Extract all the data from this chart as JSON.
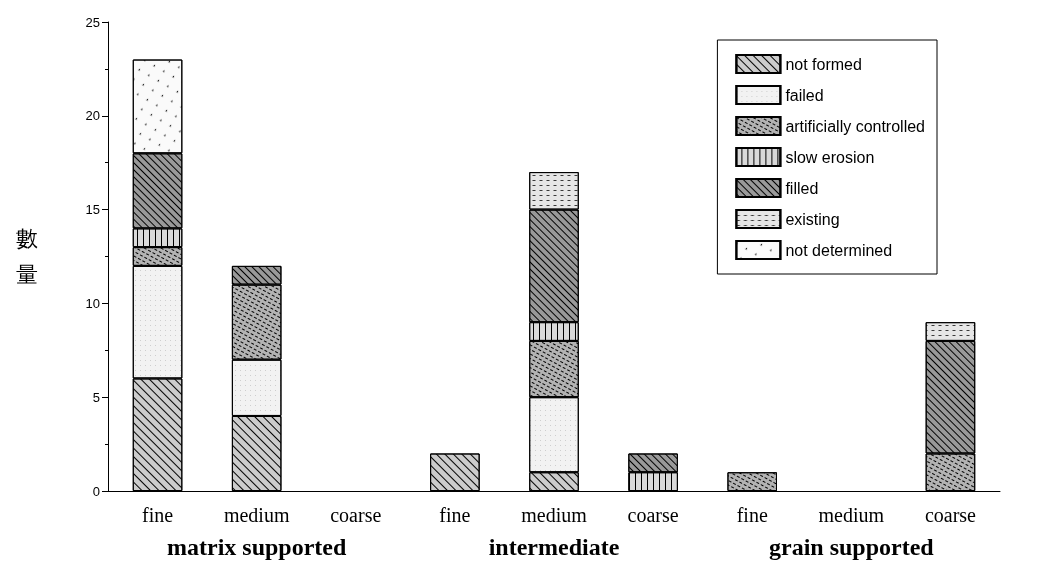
{
  "chart_data": {
    "type": "bar",
    "stacked": true,
    "ylabel": "數量",
    "categories": [
      "fine",
      "medium",
      "coarse",
      "fine",
      "medium",
      "coarse",
      "fine",
      "medium",
      "coarse"
    ],
    "annotations": [
      "matrix supported",
      "intermediate",
      "grain supported"
    ],
    "series": [
      {
        "name": "not formed",
        "color": "#cccccc",
        "values": [
          6,
          4,
          null,
          2,
          1,
          null,
          null,
          null,
          null
        ]
      },
      {
        "name": "failed",
        "color": "#f2f2f2",
        "values": [
          6,
          3,
          null,
          null,
          4,
          null,
          null,
          null,
          null
        ]
      },
      {
        "name": "artificially controlled",
        "color": "#b3b3b3",
        "values": [
          1,
          4,
          null,
          null,
          3,
          null,
          1,
          null,
          2
        ]
      },
      {
        "name": "slow erosion",
        "color": "#d9d9d9",
        "values": [
          1,
          null,
          null,
          null,
          1,
          1,
          null,
          null,
          null
        ]
      },
      {
        "name": "filled",
        "color": "#999999",
        "values": [
          4,
          1,
          null,
          null,
          6,
          1,
          null,
          null,
          6
        ]
      },
      {
        "name": "existing",
        "color": "#e6e6e6",
        "values": [
          null,
          null,
          null,
          null,
          2,
          null,
          null,
          null,
          1
        ]
      },
      {
        "name": "not determined",
        "color": "#fafafa",
        "values": [
          5,
          null,
          null,
          null,
          null,
          null,
          null,
          null,
          null
        ]
      }
    ],
    "ylim": [
      0,
      25
    ],
    "yticks": [
      0,
      5,
      10,
      15,
      20,
      25
    ],
    "grid": false,
    "legend": "top right"
  }
}
